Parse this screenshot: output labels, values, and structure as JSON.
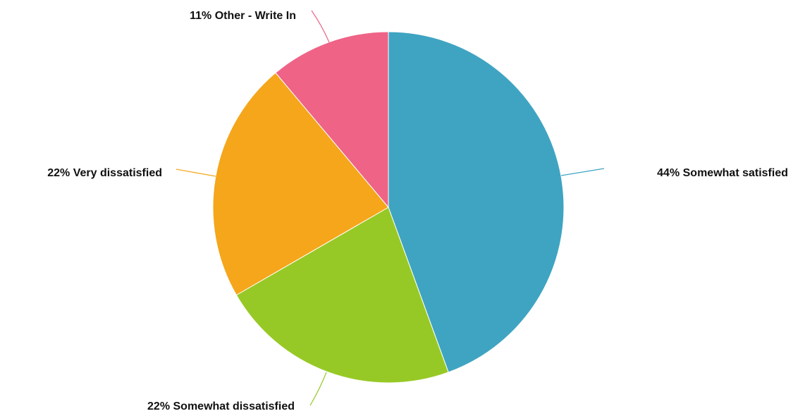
{
  "chart_data": {
    "type": "pie",
    "title": "",
    "slices": [
      {
        "name": "Somewhat satisfied",
        "percent": 44,
        "label": "44% Somewhat satisfied",
        "color": "#3fa4c2"
      },
      {
        "name": "Somewhat dissatisfied",
        "percent": 22,
        "label": "22% Somewhat dissatisfied",
        "color": "#97c926"
      },
      {
        "name": "Very dissatisfied",
        "percent": 22,
        "label": "22% Very dissatisfied",
        "color": "#f5a61a"
      },
      {
        "name": "Other - Write In",
        "percent": 11,
        "label": "11% Other - Write In",
        "color": "#ef6387"
      }
    ],
    "start": "12 o'clock",
    "direction": "clockwise",
    "legend": "none (labels on leader lines)"
  }
}
